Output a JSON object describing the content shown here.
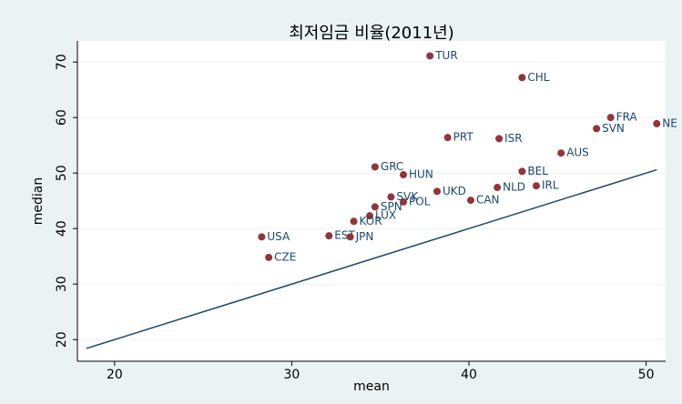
{
  "chart_data": {
    "type": "scatter",
    "title": "최저임금 비율(2011년)",
    "x_label": "mean",
    "y_label": "median",
    "points": {
      "color": "#90353b",
      "labels": [
        "TUR",
        "CHL",
        "FRA",
        "SVN",
        "NE",
        "PRT",
        "ISR",
        "AUS",
        "GRC",
        "BEL",
        "HUN",
        "IRL",
        "NLD",
        "UKD",
        "SVK",
        "CAN",
        "POL",
        "SPN",
        "LUX",
        "KOR",
        "USA",
        "EST",
        "JPN",
        "CZE"
      ],
      "x": [
        37.8,
        43.0,
        48.0,
        47.2,
        50.6,
        38.8,
        41.7,
        45.2,
        34.7,
        43.0,
        36.3,
        43.8,
        41.6,
        38.2,
        35.6,
        40.1,
        36.3,
        34.7,
        34.4,
        33.5,
        28.3,
        32.1,
        33.3,
        28.7
      ],
      "y": [
        71.1,
        67.2,
        60.0,
        58.0,
        58.9,
        56.4,
        56.2,
        53.6,
        51.1,
        50.3,
        49.7,
        47.7,
        47.4,
        46.7,
        45.7,
        45.1,
        44.8,
        43.9,
        42.3,
        41.3,
        38.5,
        38.7,
        38.5,
        34.8
      ]
    },
    "line": {
      "color": "#1a476f",
      "x": [
        18.4,
        50.6
      ],
      "y": [
        18.4,
        50.6
      ]
    },
    "xlim": [
      17.9,
      51.1
    ],
    "ylim": [
      16.1,
      73.8
    ],
    "xticks": [
      20,
      30,
      40,
      50
    ],
    "yticks": [
      20,
      30,
      40,
      50,
      60,
      70
    ],
    "grid": true
  }
}
